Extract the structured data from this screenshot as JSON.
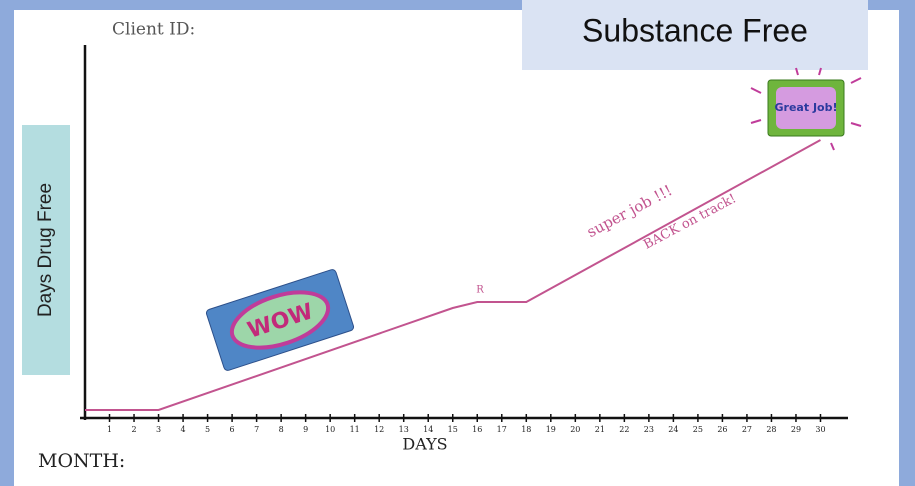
{
  "chart_data": {
    "type": "line",
    "title": "Substance Free",
    "client_label": "Client ID:",
    "month_label": "MONTH:",
    "y_label": "Days Drug Free",
    "x_label": "DAYS",
    "x": [
      0,
      3,
      15,
      16,
      18,
      30
    ],
    "series": [
      {
        "name": "Days Drug Free",
        "color": "#c2548f",
        "values": [
          0,
          0,
          8.5,
          9,
          9,
          22.5
        ]
      }
    ],
    "xlim": [
      0,
      31
    ],
    "xticks": [
      1,
      2,
      3,
      4,
      5,
      6,
      7,
      8,
      9,
      10,
      11,
      12,
      13,
      14,
      15,
      16,
      17,
      18,
      19,
      20,
      21,
      22,
      23,
      24,
      25,
      26,
      27,
      28,
      29,
      30
    ],
    "ylim": [
      0,
      30
    ],
    "annotations": [
      "WOW",
      "R",
      "super job !!!",
      "BACK on track!",
      "Great Job!"
    ]
  }
}
